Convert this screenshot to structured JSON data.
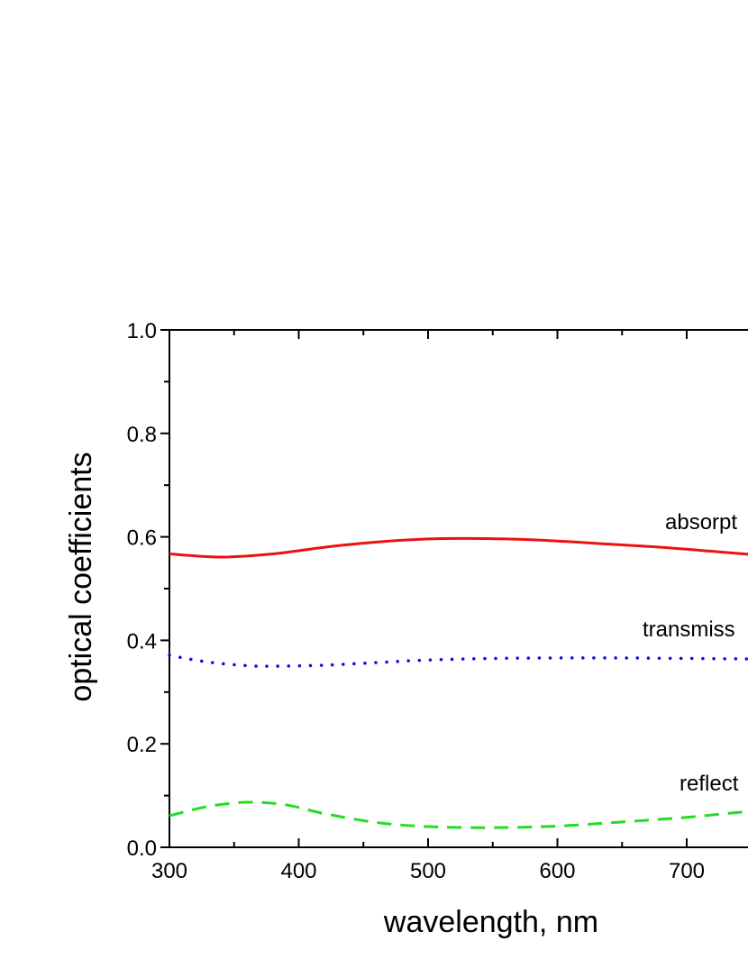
{
  "chart_data": {
    "type": "line",
    "title": "",
    "xlabel": "wavelength, nm",
    "ylabel": "optical coefficients",
    "xlim": [
      300,
      800
    ],
    "ylim": [
      0.0,
      1.0
    ],
    "x_ticks": [
      "300",
      "400",
      "500",
      "600",
      "700"
    ],
    "y_ticks": [
      "0.0",
      "0.2",
      "0.4",
      "0.6",
      "0.8",
      "1.0"
    ],
    "grid": false,
    "series": [
      {
        "name": "absorption",
        "label": "absorpt",
        "color": "#ee1111",
        "style": "solid",
        "x": [
          300,
          340,
          380,
          420,
          460,
          500,
          530,
          560,
          600,
          640,
          680,
          720,
          750
        ],
        "y": [
          0.567,
          0.561,
          0.567,
          0.58,
          0.59,
          0.596,
          0.597,
          0.596,
          0.592,
          0.586,
          0.58,
          0.572,
          0.566
        ]
      },
      {
        "name": "transmission",
        "label": "transmiss",
        "color": "#1010dd",
        "style": "dotted",
        "x": [
          300,
          330,
          360,
          380,
          420,
          460,
          500,
          550,
          600,
          650,
          700,
          750
        ],
        "y": [
          0.371,
          0.358,
          0.351,
          0.35,
          0.352,
          0.357,
          0.362,
          0.365,
          0.366,
          0.366,
          0.365,
          0.364
        ]
      },
      {
        "name": "reflection",
        "label": "reflect",
        "color": "#22dd22",
        "style": "dashed",
        "x": [
          300,
          330,
          360,
          390,
          420,
          460,
          500,
          550,
          600,
          650,
          700,
          750
        ],
        "y": [
          0.061,
          0.079,
          0.087,
          0.082,
          0.065,
          0.048,
          0.04,
          0.038,
          0.041,
          0.049,
          0.058,
          0.07
        ]
      }
    ]
  }
}
